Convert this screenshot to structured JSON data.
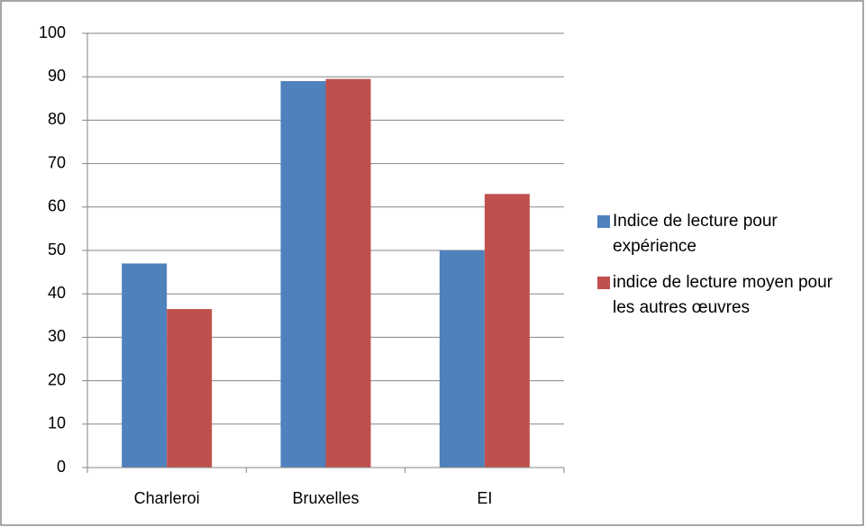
{
  "chart_data": {
    "type": "bar",
    "categories": [
      "Charleroi",
      "Bruxelles",
      "EI"
    ],
    "series": [
      {
        "name": "Indice de lecture pour expérience",
        "color": "#4f81bd",
        "values": [
          47,
          89,
          50
        ]
      },
      {
        "name": "indice de lecture moyen pour les autres œuvres",
        "color": "#c0504d",
        "values": [
          36.5,
          89.5,
          63
        ]
      }
    ],
    "ylim": [
      0,
      100
    ],
    "yticks": [
      0,
      10,
      20,
      30,
      40,
      50,
      60,
      70,
      80,
      90,
      100
    ],
    "grid": true,
    "legend": "right"
  }
}
